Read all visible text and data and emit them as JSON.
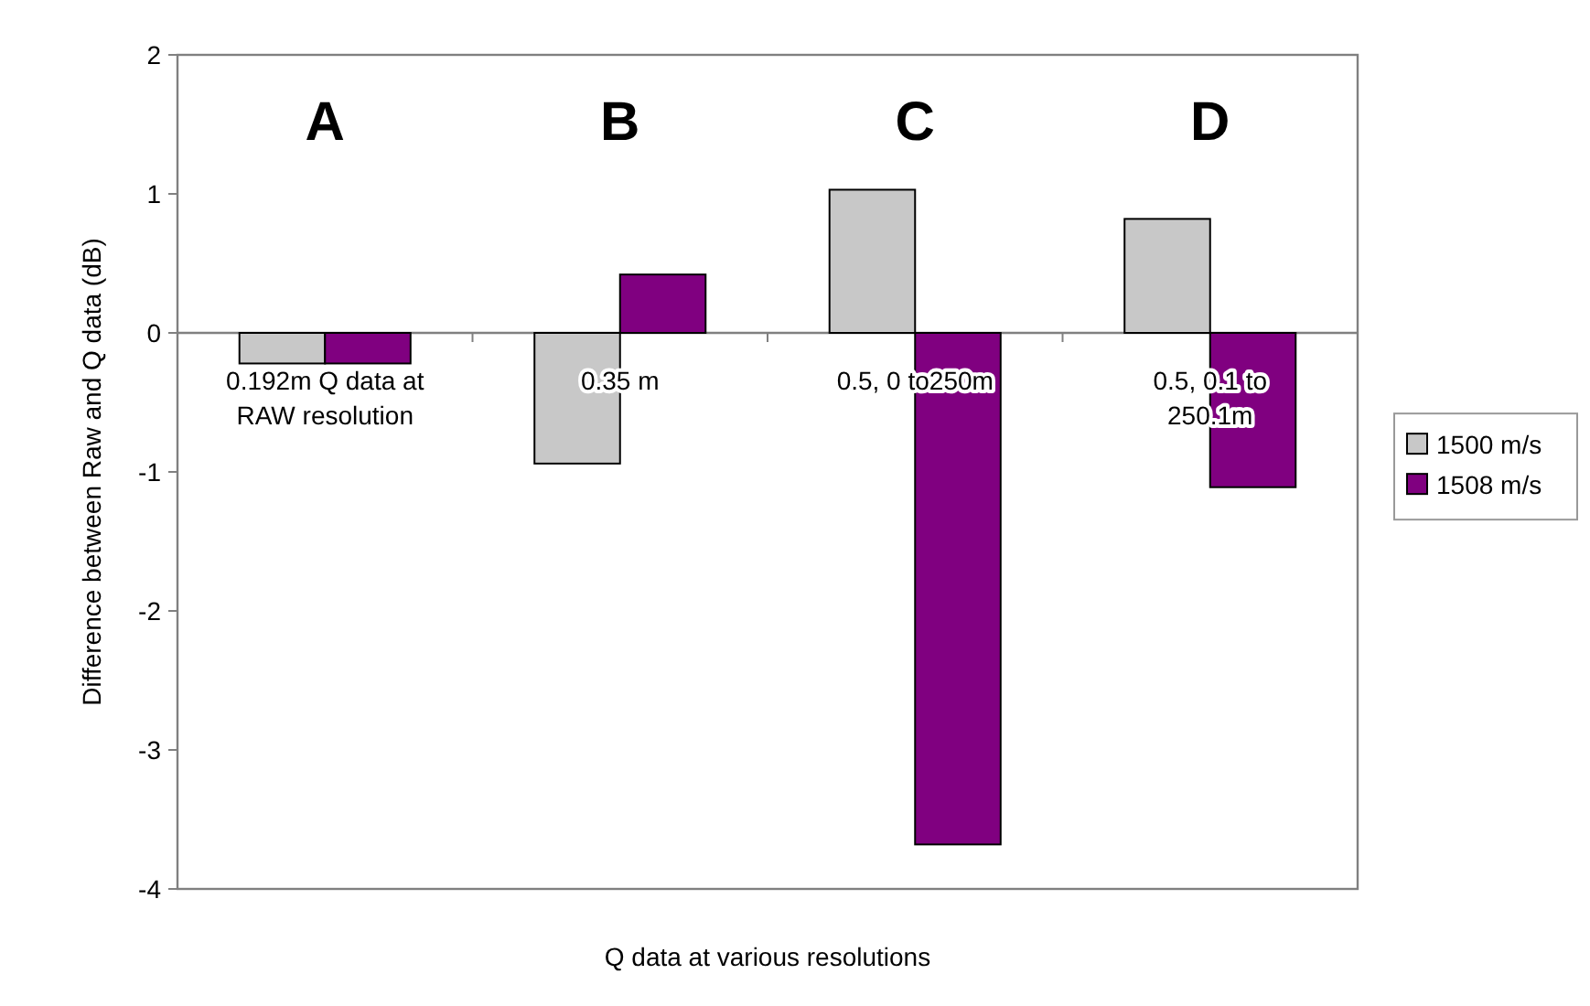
{
  "chart_data": {
    "type": "bar",
    "xlabel": "Q data at various resolutions",
    "ylabel": "Difference between Raw and Q data (dB)",
    "categories": [
      "0.192m Q data at RAW resolution",
      "0.35 m",
      "0.5, 0 to250m",
      "0.5, 0.1 to 250.1m"
    ],
    "series": [
      {
        "name": "1500 m/s",
        "color": "#c8c8c8",
        "values": [
          -0.22,
          -0.94,
          1.03,
          0.82
        ]
      },
      {
        "name": "1508 m/s",
        "color": "#800080",
        "values": [
          -0.22,
          0.42,
          -3.68,
          -1.11
        ]
      }
    ],
    "ylim": [
      -4,
      2
    ],
    "yticks": [
      -4,
      -3,
      -2,
      -1,
      0,
      1,
      2
    ],
    "grid": false,
    "legend": "right",
    "annotations": [
      "A",
      "B",
      "C",
      "D"
    ]
  }
}
